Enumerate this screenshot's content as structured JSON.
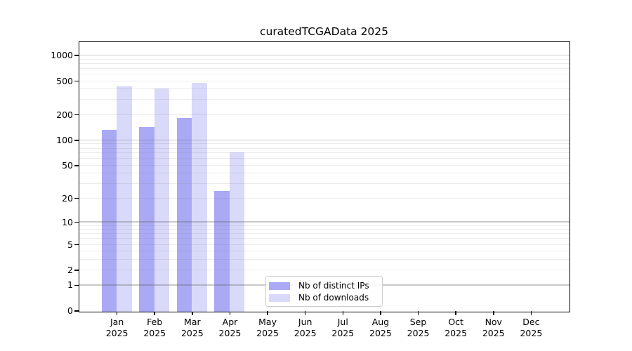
{
  "chart_data": {
    "type": "bar",
    "title": "curatedTCGAData 2025",
    "categories": [
      "Jan",
      "Feb",
      "Mar",
      "Apr",
      "May",
      "Jun",
      "Jul",
      "Aug",
      "Sep",
      "Oct",
      "Nov",
      "Dec"
    ],
    "category_year": "2025",
    "series": [
      {
        "name": "Nb of distinct IPs",
        "color": "#a9a9f4",
        "values": [
          134,
          145,
          185,
          25,
          null,
          null,
          null,
          null,
          null,
          null,
          null,
          null
        ]
      },
      {
        "name": "Nb of downloads",
        "color": "#d9d9fa",
        "values": [
          440,
          410,
          478,
          73,
          null,
          null,
          null,
          null,
          null,
          null,
          null,
          null
        ]
      }
    ],
    "y_scale": "log10(1+x)",
    "y_ticks": [
      0,
      1,
      2,
      5,
      10,
      20,
      50,
      100,
      200,
      500,
      1000
    ],
    "ylim": [
      0,
      1437
    ],
    "grid": "horizontal; light minor lines at 2-9 of each decade, darker major lines at 1, 10, 100, 1000; drawn over bars",
    "legend_position": "inside plot, lower center-left",
    "xlabel": "",
    "ylabel": ""
  }
}
